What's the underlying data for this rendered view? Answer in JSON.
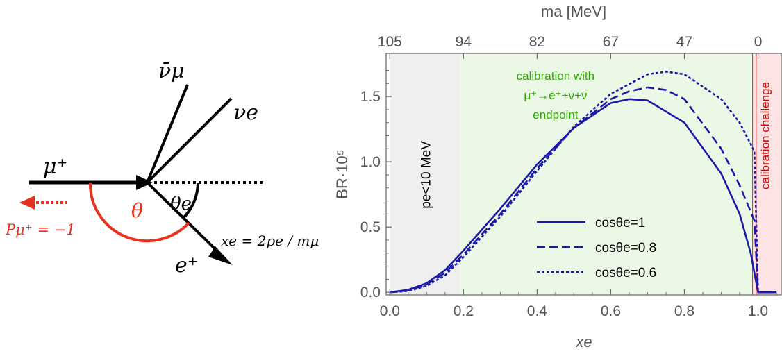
{
  "diagram": {
    "muon_label": "μ⁺",
    "numubar_label": "ν̄μ",
    "nue_label": "νe",
    "positron_label": "e⁺",
    "theta_label": "θ",
    "theta_e_label": "θe",
    "polarization_label": "Pμ⁺ = −1",
    "xe_def_label": "xe = 2pe / mμ",
    "colors": {
      "red": "#e8301c",
      "black": "#000000"
    }
  },
  "chart_data": {
    "type": "line",
    "title": "",
    "xlabel": "xe",
    "ylabel": "BR·10⁵",
    "top_axis_label": "ma [MeV]",
    "xlim": [
      -0.01,
      1.065
    ],
    "ylim": [
      -0.02,
      1.83
    ],
    "x_ticks": [
      0.0,
      0.2,
      0.4,
      0.6,
      0.8,
      1.0
    ],
    "x_tick_labels": [
      "0.0",
      "0.2",
      "0.4",
      "0.6",
      "0.8",
      "1.0"
    ],
    "y_ticks": [
      0.0,
      0.5,
      1.0,
      1.5
    ],
    "y_tick_labels": [
      "0.0",
      "0.5",
      "1.0",
      "1.5"
    ],
    "top_ticks": [
      0.0,
      0.2,
      0.4,
      0.6,
      0.8,
      1.0
    ],
    "top_tick_labels": [
      "105",
      "94",
      "82",
      "67",
      "47",
      "0"
    ],
    "regions": [
      {
        "x_from": 0.0,
        "x_to": 0.19,
        "color": "#efefef",
        "label": "pe<10 MeV"
      },
      {
        "x_from": 0.19,
        "x_to": 0.985,
        "color": "#ebf8e5",
        "label_lines": [
          "calibration with",
          "μ⁺→e⁺+ν+ν̄",
          "endpoint"
        ],
        "label_color": "#2aa800"
      },
      {
        "x_from": 0.985,
        "x_to": 1.065,
        "color": "#fde3e3",
        "label": "calibration challenge",
        "label_color": "#cc0000"
      }
    ],
    "series": [
      {
        "name": "cosθe=1",
        "dash": "solid",
        "color": "#1a1aa8",
        "x": [
          0.0,
          0.05,
          0.1,
          0.15,
          0.2,
          0.3,
          0.4,
          0.5,
          0.6,
          0.65,
          0.7,
          0.8,
          0.9,
          0.95,
          0.98,
          1.0,
          1.05
        ],
        "y": [
          0.0,
          0.02,
          0.07,
          0.17,
          0.32,
          0.64,
          0.98,
          1.26,
          1.45,
          1.48,
          1.47,
          1.3,
          0.91,
          0.6,
          0.3,
          0.0,
          0.0
        ]
      },
      {
        "name": "cosθe=0.8",
        "dash": "dashed",
        "color": "#1a1aa8",
        "x": [
          0.0,
          0.05,
          0.1,
          0.15,
          0.2,
          0.3,
          0.4,
          0.5,
          0.6,
          0.65,
          0.7,
          0.75,
          0.8,
          0.9,
          0.95,
          0.99,
          1.0,
          1.05
        ],
        "y": [
          0.0,
          0.015,
          0.06,
          0.15,
          0.29,
          0.6,
          0.95,
          1.26,
          1.48,
          1.54,
          1.57,
          1.55,
          1.48,
          1.1,
          0.82,
          0.55,
          0.0,
          0.0
        ]
      },
      {
        "name": "cosθe=0.6",
        "dash": "dotted",
        "color": "#1a1aa8",
        "x": [
          0.0,
          0.05,
          0.1,
          0.15,
          0.2,
          0.3,
          0.4,
          0.5,
          0.6,
          0.7,
          0.75,
          0.8,
          0.9,
          0.95,
          0.99,
          1.0,
          1.05
        ],
        "y": [
          0.0,
          0.01,
          0.05,
          0.13,
          0.27,
          0.58,
          0.93,
          1.27,
          1.52,
          1.67,
          1.69,
          1.67,
          1.48,
          1.3,
          1.08,
          0.0,
          0.0
        ]
      }
    ],
    "legend_position": "lower-right"
  }
}
